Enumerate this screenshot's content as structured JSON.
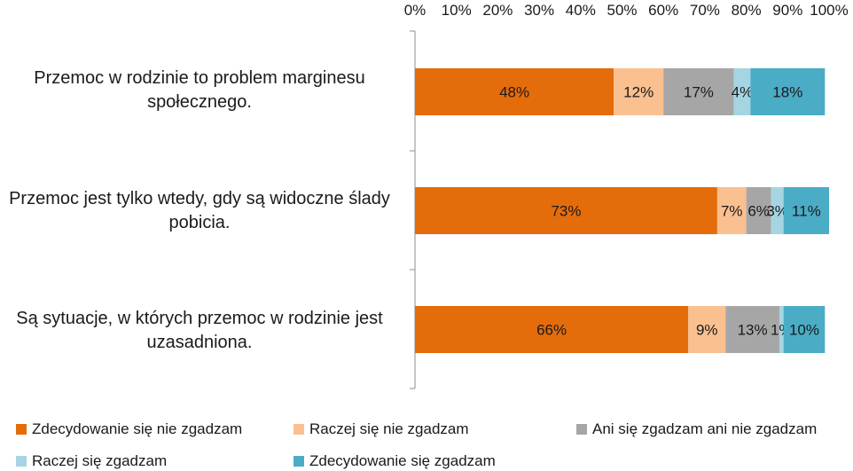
{
  "chart_data": {
    "type": "bar",
    "orientation": "horizontal",
    "stacked": true,
    "xlim": [
      0,
      100
    ],
    "x_ticks": [
      "0%",
      "10%",
      "20%",
      "30%",
      "40%",
      "50%",
      "60%",
      "70%",
      "80%",
      "90%",
      "100%"
    ],
    "x_axis_position": "top",
    "grid": false,
    "legend_position": "bottom",
    "categories": [
      "Przemoc w rodzinie to problem marginesu społecznego.",
      "Przemoc jest tylko wtedy, gdy są widoczne ślady pobicia.",
      "Są sytuacje, w których przemoc w rodzinie jest uzasadniona."
    ],
    "series": [
      {
        "name": "Zdecydowanie się nie zgadzam",
        "color": "#e46c0a",
        "values": [
          48,
          73,
          66
        ],
        "labels": [
          "48%",
          "73%",
          "66%"
        ]
      },
      {
        "name": "Raczej się nie zgadzam",
        "color": "#fac090",
        "values": [
          12,
          7,
          9
        ],
        "labels": [
          "12%",
          "7%",
          "9%"
        ]
      },
      {
        "name": "Ani się zgadzam ani nie zgadzam",
        "color": "#a6a6a6",
        "values": [
          17,
          6,
          13
        ],
        "labels": [
          "17%",
          "6%",
          "13%"
        ]
      },
      {
        "name": "Raczej się zgadzam",
        "color": "#a5d5e2",
        "values": [
          4,
          3,
          1
        ],
        "labels": [
          "4%",
          "3%",
          "1%"
        ]
      },
      {
        "name": "Zdecydowanie się zgadzam",
        "color": "#4bacc6",
        "values": [
          18,
          11,
          10
        ],
        "labels": [
          "18%",
          "11%",
          "10%"
        ]
      }
    ]
  }
}
